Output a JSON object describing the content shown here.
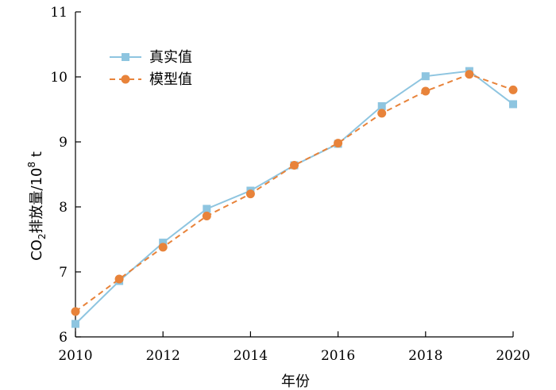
{
  "chart_data": {
    "type": "line",
    "x": [
      2010,
      2011,
      2012,
      2013,
      2014,
      2015,
      2016,
      2017,
      2018,
      2019,
      2020
    ],
    "series": [
      {
        "name": "真实值",
        "values": [
          6.2,
          6.86,
          7.45,
          7.97,
          8.25,
          8.64,
          8.97,
          9.55,
          10.01,
          10.09,
          9.58
        ],
        "color": "#8ec5e0",
        "marker": "square",
        "line_style": "solid"
      },
      {
        "name": "模型值",
        "values": [
          6.39,
          6.89,
          7.38,
          7.86,
          8.2,
          8.64,
          8.98,
          9.44,
          9.78,
          10.04,
          9.8
        ],
        "color": "#e8833a",
        "marker": "circle",
        "line_style": "dashed"
      }
    ],
    "xlabel": "年份",
    "ylabel_main": "CO",
    "ylabel_sub": "2",
    "ylabel_mid": "排放量/10",
    "ylabel_sup": "8",
    "ylabel_unit": " t",
    "xlim": [
      2010,
      2020
    ],
    "ylim": [
      6,
      11
    ],
    "x_ticks": [
      2010,
      2012,
      2014,
      2016,
      2018,
      2020
    ],
    "y_ticks": [
      6,
      7,
      8,
      9,
      10,
      11
    ],
    "grid": false,
    "legend_position": "top-left"
  }
}
